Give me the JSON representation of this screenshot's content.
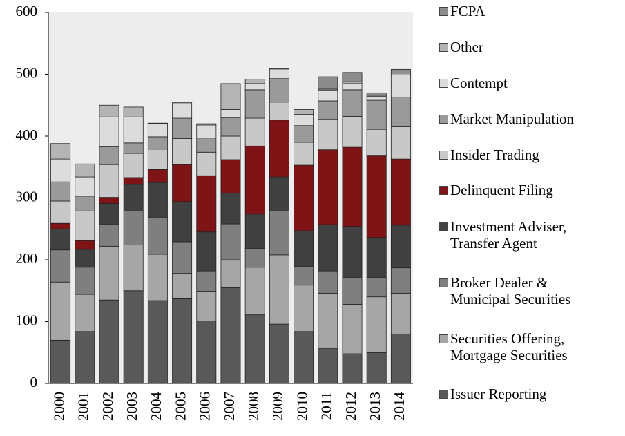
{
  "chart_data": {
    "type": "stacked_bar",
    "categories": [
      "2000",
      "2001",
      "2002",
      "2003",
      "2004",
      "2005",
      "2006",
      "2007",
      "2008",
      "2009",
      "2010",
      "2011",
      "2012",
      "2013",
      "2014"
    ],
    "series": [
      {
        "name": "Issuer Reporting",
        "color": "#595959",
        "values": [
          70,
          84,
          135,
          150,
          134,
          137,
          101,
          155,
          111,
          96,
          84,
          57,
          48,
          50,
          80
        ]
      },
      {
        "name": "Securities Offering, Mortgage Securities",
        "color": "#a6a6a6",
        "values": [
          94,
          60,
          87,
          74,
          75,
          41,
          48,
          45,
          77,
          112,
          75,
          89,
          80,
          90,
          66
        ]
      },
      {
        "name": "Broker Dealer & Municipal Securities",
        "color": "#7f7f7f",
        "values": [
          52,
          44,
          35,
          55,
          59,
          51,
          33,
          58,
          30,
          71,
          30,
          36,
          43,
          31,
          41
        ]
      },
      {
        "name": "Investment Adviser, Transfer Agent",
        "color": "#404040",
        "values": [
          34,
          29,
          34,
          43,
          57,
          65,
          63,
          50,
          56,
          55,
          58,
          75,
          83,
          65,
          69
        ]
      },
      {
        "name": "Delinquent Filing",
        "color": "#7f1416",
        "values": [
          9,
          14,
          10,
          11,
          21,
          60,
          91,
          54,
          110,
          92,
          106,
          121,
          128,
          132,
          107
        ]
      },
      {
        "name": "Insider Trading",
        "color": "#c8c8c8",
        "values": [
          36,
          48,
          53,
          39,
          33,
          42,
          38,
          38,
          45,
          29,
          37,
          49,
          50,
          43,
          52
        ]
      },
      {
        "name": "Market Manipulation",
        "color": "#9a9a9a",
        "values": [
          31,
          24,
          29,
          17,
          20,
          33,
          23,
          30,
          46,
          38,
          27,
          30,
          43,
          47,
          48
        ]
      },
      {
        "name": "Contempt",
        "color": "#dcdcdc",
        "values": [
          37,
          31,
          48,
          42,
          21,
          23,
          21,
          13,
          10,
          14,
          18,
          17,
          10,
          6,
          36
        ]
      },
      {
        "name": "Other",
        "color": "#b4b4b4",
        "values": [
          25,
          21,
          19,
          16,
          1,
          2,
          2,
          42,
          7,
          2,
          8,
          2,
          3,
          2,
          3
        ]
      },
      {
        "name": "FCPA",
        "color": "#8c8c8c",
        "values": [
          0,
          0,
          0,
          0,
          0,
          0,
          0,
          0,
          0,
          0,
          0,
          20,
          15,
          4,
          6
        ]
      }
    ],
    "ylim": [
      0,
      600
    ],
    "yticks": [
      0,
      100,
      200,
      300,
      400,
      500,
      600
    ]
  }
}
